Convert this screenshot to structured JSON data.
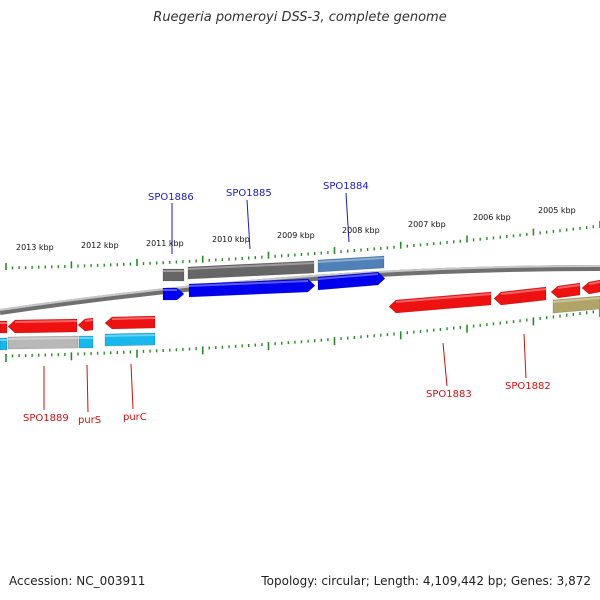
{
  "title": "Ruegeria pomeroyi DSS-3, complete genome",
  "footer": {
    "accession": "Accession: NC_003911",
    "summary": "Topology: circular; Length: 4,109,442 bp; Genes: 3,872"
  },
  "scale_labels": [
    "2013 kbp",
    "2012 kbp",
    "2011 kbp",
    "2010 kbp",
    "2009 kbp",
    "2008 kbp",
    "2007 kbp",
    "2006 kbp",
    "2005 kbp"
  ],
  "forward_gene_labels": [
    "SPO1886",
    "SPO1885",
    "SPO1884"
  ],
  "reverse_gene_labels": [
    "SPO1889",
    "purS",
    "purC",
    "SPO1883",
    "SPO1882"
  ],
  "colors": {
    "forward_label": "#1a1acc",
    "reverse_label": "#d01010",
    "tick": "#2a8a2a",
    "backbone": "#888888",
    "forward_cds": "#0000ee",
    "reverse_cds": "#ee1111",
    "gene_dark": "#666666",
    "gene_steel": "#4f80b8",
    "gene_cyan": "#18b8ee",
    "gene_silver": "#b8b8b8",
    "gene_olive": "#b0a468"
  }
}
